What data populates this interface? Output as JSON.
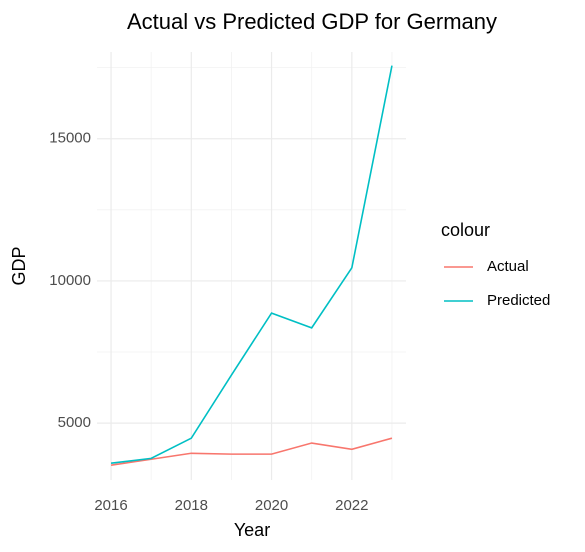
{
  "chart_data": {
    "type": "line",
    "title": "Actual vs Predicted GDP for Germany",
    "x_label": "Year",
    "y_label": "GDP",
    "legend_title": "colour",
    "x": [
      2016,
      2017,
      2018,
      2019,
      2020,
      2021,
      2022,
      2023
    ],
    "series": [
      {
        "name": "Actual",
        "color": "#F8766D",
        "values": [
          3520,
          3730,
          3940,
          3910,
          3910,
          4300,
          4080,
          4470
        ]
      },
      {
        "name": "Predicted",
        "color": "#00BFC4",
        "values": [
          3590,
          3760,
          4470,
          6690,
          8870,
          8350,
          10460,
          17570
        ]
      }
    ],
    "xlim": [
      2015.65,
      2023.35
    ],
    "xticks": [
      2016,
      2018,
      2020,
      2022
    ],
    "xminor": [
      2017,
      2019,
      2021,
      2023
    ],
    "ylim": [
      3000,
      18050
    ],
    "yticks": [
      5000,
      10000,
      15000
    ],
    "yminor": [
      7500,
      12500,
      17500
    ],
    "grid": true,
    "legend": "right"
  }
}
